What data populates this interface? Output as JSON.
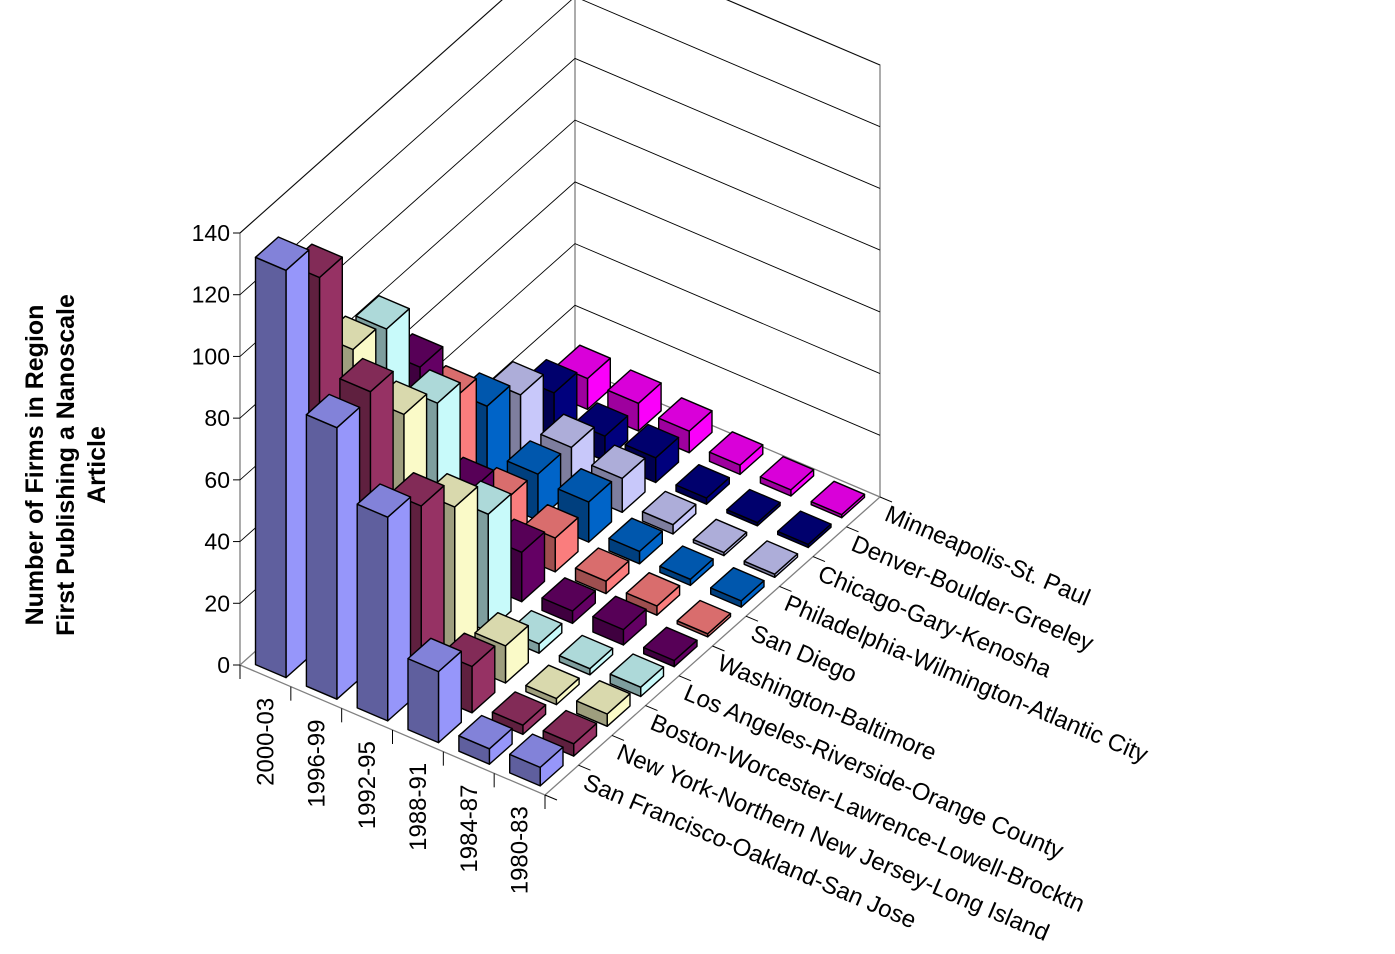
{
  "chart_data": {
    "type": "bar",
    "variant": "3d-grid",
    "title": "",
    "ylabel_lines": [
      "Number of Firms in Region",
      "First Publishing a Nanoscale",
      "Article"
    ],
    "zlim": [
      0,
      140
    ],
    "z_ticks": [
      "0",
      "20",
      "40",
      "60",
      "80",
      "100",
      "120",
      "140"
    ],
    "gridlines": true,
    "periods": [
      "2000-03",
      "1996-99",
      "1992-95",
      "1988-91",
      "1984-87",
      "1980-83"
    ],
    "regions": [
      "San Francisco-Oakland-San Jose",
      "New York-Northern New Jersey-Long Island",
      "Boston-Worcester-Lawrence-Lowell-Brocktn",
      "Los Angeles-Riverside-Orange County",
      "Washington-Baltimore",
      "San Diego",
      "Philadelphia-Wilmington-Atlantic City",
      "Chicago-Gary-Kenosha",
      "Denver-Boulder-Greeley",
      "Minneapolis-St. Paul"
    ],
    "values": [
      [
        132,
        120,
        87,
        84,
        62,
        42,
        30,
        24,
        15,
        10
      ],
      [
        88,
        90,
        73,
        67,
        29,
        16,
        15,
        14,
        8,
        9
      ],
      [
        66,
        60,
        50,
        38,
        16,
        11,
        13,
        11,
        8,
        7
      ],
      [
        23,
        15,
        12,
        3,
        4,
        4,
        4,
        3,
        2,
        3
      ],
      [
        5,
        3,
        2,
        2,
        5,
        3,
        2,
        1,
        1,
        2
      ],
      [
        6,
        4,
        4,
        3,
        2,
        1,
        2,
        1,
        1,
        1
      ]
    ],
    "region_colors": {
      "San Francisco-Oakland-San Jose": "#9999ff",
      "New York-Northern New Jersey-Long Island": "#993366",
      "Boston-Worcester-Lawrence-Lowell-Brocktn": "#ffffcc",
      "Los Angeles-Riverside-Orange County": "#ccffff",
      "Washington-Baltimore": "#660066",
      "San Diego": "#ff8080",
      "Philadelphia-Wilmington-Atlantic City": "#0066cc",
      "Chicago-Gary-Kenosha": "#ccccff",
      "Denver-Boulder-Greeley": "#000080",
      "Minneapolis-St. Paul": "#ff00ff"
    }
  }
}
